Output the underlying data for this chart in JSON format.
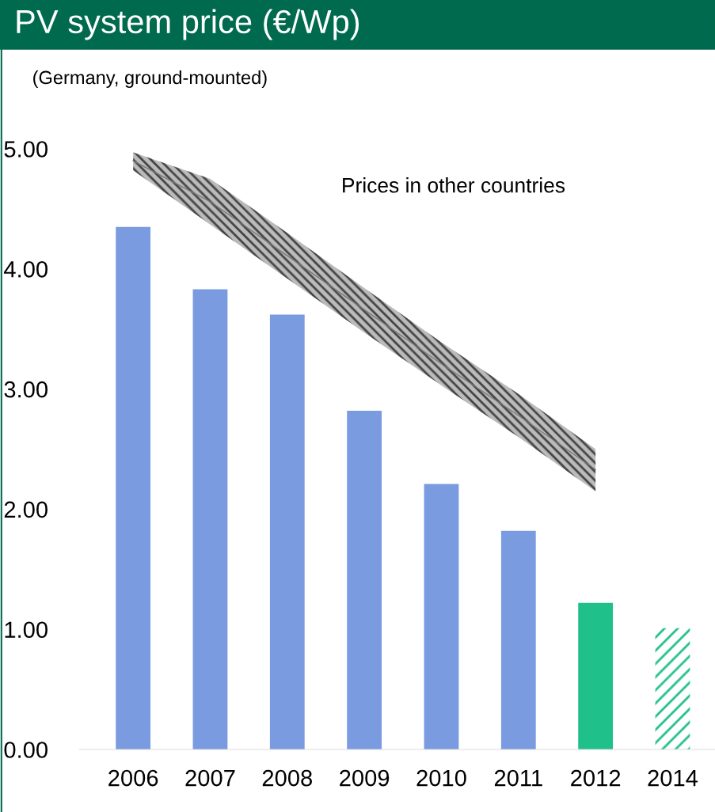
{
  "chart_data": {
    "type": "bar",
    "title": "PV system price (€/Wp)",
    "subtitle": "(Germany, ground-mounted)",
    "categories": [
      "2006",
      "2007",
      "2008",
      "2009",
      "2010",
      "2011",
      "2012",
      "2014"
    ],
    "series": [
      {
        "color": "#7b9be0",
        "values": [
          4.35,
          3.83,
          3.62,
          2.82,
          2.21,
          1.82,
          null,
          null
        ]
      },
      {
        "color": "#20c08a",
        "values": [
          null,
          null,
          null,
          null,
          null,
          null,
          1.22,
          null
        ]
      },
      {
        "color": "#20c08a",
        "line_style": "dashed",
        "values": [
          null,
          null,
          null,
          null,
          null,
          null,
          null,
          1.01
        ]
      },
      {
        "type": "line",
        "name": "Prices in other countries",
        "color": "#777777",
        "values": [
          4.9,
          4.56,
          4.11,
          3.66,
          3.21,
          2.78,
          2.33,
          null
        ],
        "lower": [
          4.82,
          4.37,
          3.92,
          3.47,
          3.03,
          2.6,
          2.15,
          null
        ],
        "upper": [
          4.97,
          4.75,
          4.3,
          3.84,
          3.39,
          2.96,
          2.5,
          null
        ]
      }
    ],
    "ylim": [
      0,
      5
    ],
    "yticks": [
      {
        "value": 0,
        "label": "0.00"
      },
      {
        "value": 1,
        "label": "1.00"
      },
      {
        "value": 2,
        "label": "2.00"
      },
      {
        "value": 3,
        "label": "3.00"
      },
      {
        "value": 4,
        "label": "4.00"
      },
      {
        "value": 5,
        "label": "5.00"
      }
    ],
    "grid": false,
    "legend": false
  }
}
